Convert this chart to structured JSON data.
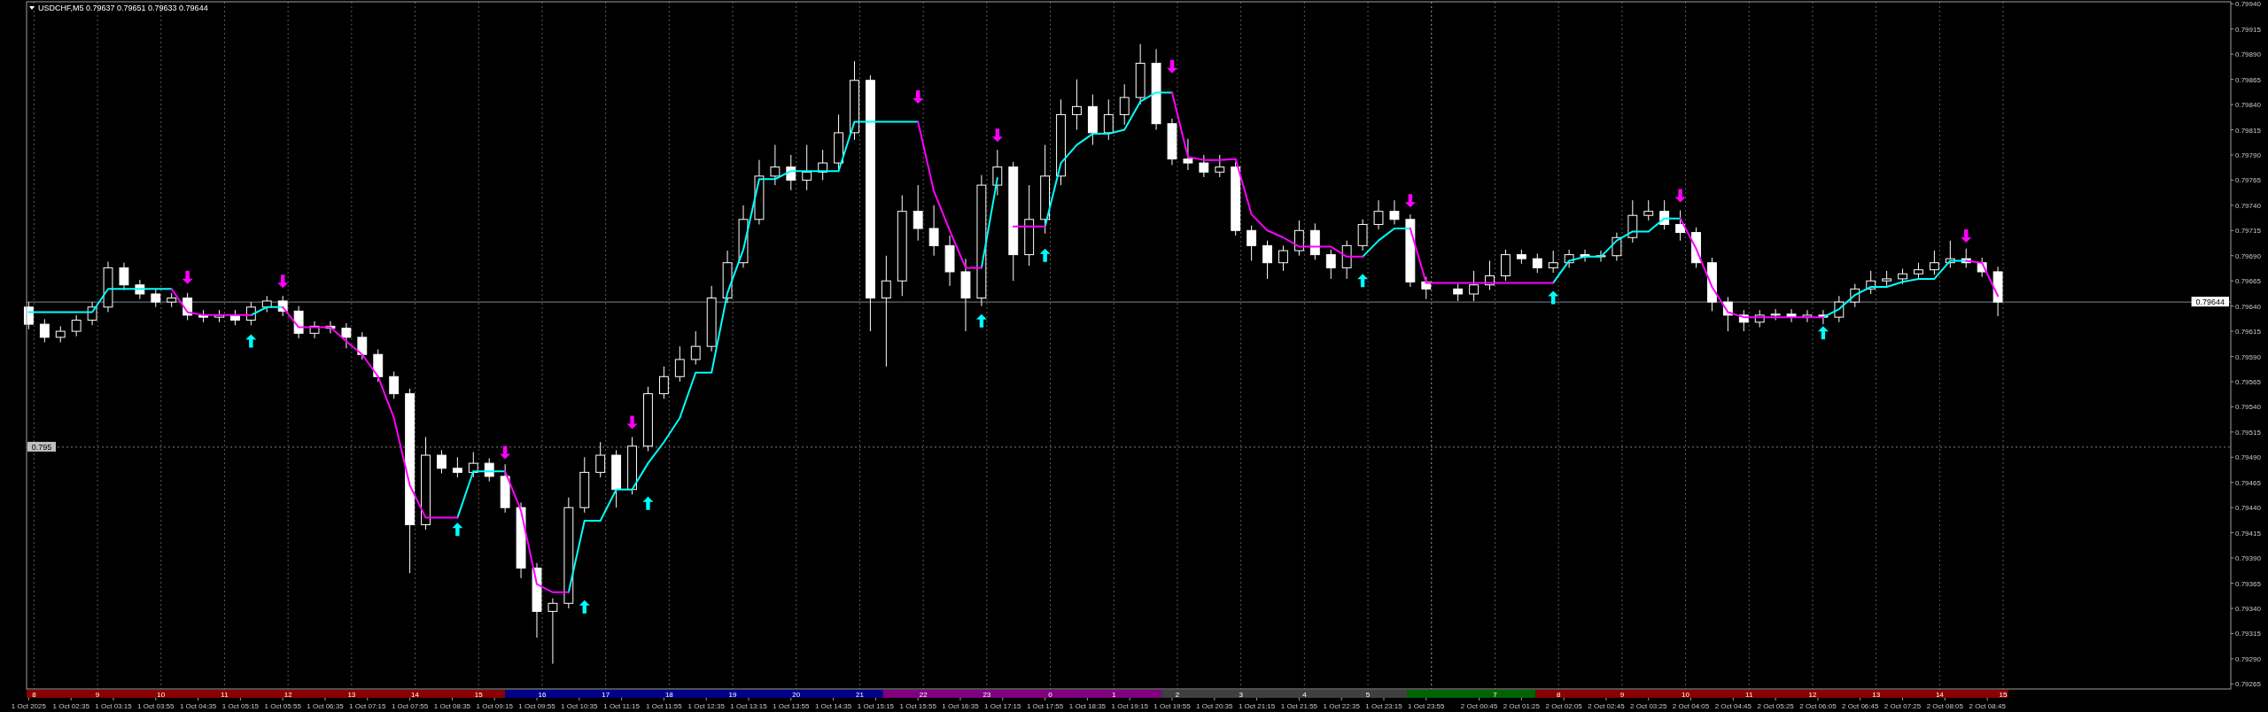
{
  "chart_data": {
    "type": "candlestick",
    "title": "USDCHF,M5 0.79637 0.79651 0.79633 0.79644",
    "x": [
      "2025-10-01T01:55",
      "2025-10-01T02:10",
      "2025-10-01T02:25",
      "2025-10-01T02:40",
      "2025-10-01T02:55",
      "2025-10-01T03:10",
      "2025-10-01T03:25",
      "2025-10-01T03:40",
      "2025-10-01T03:55",
      "2025-10-01T04:10",
      "2025-10-01T04:25",
      "2025-10-01T04:40",
      "2025-10-01T04:55",
      "2025-10-01T05:10",
      "2025-10-01T05:25",
      "2025-10-01T05:40",
      "2025-10-01T05:55",
      "2025-10-01T06:10",
      "2025-10-01T06:25",
      "2025-10-01T06:40",
      "2025-10-01T06:55",
      "2025-10-01T07:10",
      "2025-10-01T07:25",
      "2025-10-01T07:40",
      "2025-10-01T07:55",
      "2025-10-01T08:10",
      "2025-10-01T08:25",
      "2025-10-01T08:40",
      "2025-10-01T08:55",
      "2025-10-01T09:10",
      "2025-10-01T09:25",
      "2025-10-01T09:40",
      "2025-10-01T09:55",
      "2025-10-01T10:10",
      "2025-10-01T10:25",
      "2025-10-01T10:40",
      "2025-10-01T10:55",
      "2025-10-01T11:10",
      "2025-10-01T11:25",
      "2025-10-01T11:40",
      "2025-10-01T11:55",
      "2025-10-01T12:10",
      "2025-10-01T12:25",
      "2025-10-01T12:40",
      "2025-10-01T12:55",
      "2025-10-01T13:10",
      "2025-10-01T13:25",
      "2025-10-01T13:40",
      "2025-10-01T13:55",
      "2025-10-01T14:10",
      "2025-10-01T14:25",
      "2025-10-01T14:40",
      "2025-10-01T14:55",
      "2025-10-01T15:10",
      "2025-10-01T15:25",
      "2025-10-01T15:40",
      "2025-10-01T15:55",
      "2025-10-01T16:10",
      "2025-10-01T16:25",
      "2025-10-01T16:40",
      "2025-10-01T16:55",
      "2025-10-01T17:10",
      "2025-10-01T17:25",
      "2025-10-01T17:40",
      "2025-10-01T17:55",
      "2025-10-01T18:10",
      "2025-10-01T18:25",
      "2025-10-01T18:40",
      "2025-10-01T18:55",
      "2025-10-01T19:10",
      "2025-10-01T19:25",
      "2025-10-01T19:40",
      "2025-10-01T19:55",
      "2025-10-01T20:10",
      "2025-10-01T20:25",
      "2025-10-01T20:40",
      "2025-10-01T20:55",
      "2025-10-01T21:10",
      "2025-10-01T21:25",
      "2025-10-01T21:40",
      "2025-10-01T21:55",
      "2025-10-01T22:10",
      "2025-10-01T22:25",
      "2025-10-01T22:40",
      "2025-10-01T22:55",
      "2025-10-01T23:10",
      "2025-10-01T23:25",
      "2025-10-01T23:40",
      "2025-10-01T23:55",
      "2025-10-02T00:25",
      "2025-10-02T00:40",
      "2025-10-02T00:55",
      "2025-10-02T01:10",
      "2025-10-02T01:25",
      "2025-10-02T01:40",
      "2025-10-02T01:55",
      "2025-10-02T02:10",
      "2025-10-02T02:25",
      "2025-10-02T02:40",
      "2025-10-02T02:55",
      "2025-10-02T03:10",
      "2025-10-02T03:25",
      "2025-10-02T03:40",
      "2025-10-02T03:55",
      "2025-10-02T04:10",
      "2025-10-02T04:25",
      "2025-10-02T04:40",
      "2025-10-02T04:55",
      "2025-10-02T05:10",
      "2025-10-02T05:25",
      "2025-10-02T05:40",
      "2025-10-02T05:55",
      "2025-10-02T06:10",
      "2025-10-02T06:25",
      "2025-10-02T06:40",
      "2025-10-02T06:55",
      "2025-10-02T07:10",
      "2025-10-02T07:25",
      "2025-10-02T07:40",
      "2025-10-02T07:55",
      "2025-10-02T08:10",
      "2025-10-02T08:25",
      "2025-10-02T08:40",
      "2025-10-02T08:55"
    ],
    "ohlc": [
      [
        0.79639,
        0.79644,
        0.79617,
        0.79622
      ],
      [
        0.79622,
        0.79627,
        0.79604,
        0.79609
      ],
      [
        0.79609,
        0.7962,
        0.79604,
        0.79615
      ],
      [
        0.79615,
        0.79631,
        0.7961,
        0.79626
      ],
      [
        0.79626,
        0.79644,
        0.79621,
        0.79639
      ],
      [
        0.79639,
        0.79684,
        0.79634,
        0.79678
      ],
      [
        0.79678,
        0.79683,
        0.79656,
        0.79661
      ],
      [
        0.79661,
        0.79666,
        0.79647,
        0.79652
      ],
      [
        0.79652,
        0.79657,
        0.79639,
        0.79644
      ],
      [
        0.79644,
        0.79653,
        0.79639,
        0.79648
      ],
      [
        0.79648,
        0.79653,
        0.79626,
        0.79631
      ],
      [
        0.79631,
        0.79636,
        0.79624,
        0.79629
      ],
      [
        0.79629,
        0.79636,
        0.79624,
        0.79631
      ],
      [
        0.79631,
        0.79636,
        0.79621,
        0.79626
      ],
      [
        0.79626,
        0.79644,
        0.79621,
        0.79639
      ],
      [
        0.79639,
        0.7965,
        0.79634,
        0.79645
      ],
      [
        0.79645,
        0.7965,
        0.7963,
        0.79635
      ],
      [
        0.79635,
        0.7964,
        0.79608,
        0.79613
      ],
      [
        0.79613,
        0.79625,
        0.79608,
        0.7962
      ],
      [
        0.7962,
        0.79625,
        0.79613,
        0.79618
      ],
      [
        0.79618,
        0.79623,
        0.79598,
        0.79609
      ],
      [
        0.79609,
        0.79614,
        0.79587,
        0.79592
      ],
      [
        0.79592,
        0.79597,
        0.79565,
        0.7957
      ],
      [
        0.7957,
        0.79575,
        0.79548,
        0.79553
      ],
      [
        0.79553,
        0.79558,
        0.79375,
        0.79423
      ],
      [
        0.79423,
        0.7951,
        0.79418,
        0.79492
      ],
      [
        0.79492,
        0.79497,
        0.79474,
        0.79479
      ],
      [
        0.79479,
        0.7949,
        0.7947,
        0.79475
      ],
      [
        0.79475,
        0.79495,
        0.7947,
        0.79484
      ],
      [
        0.79484,
        0.79489,
        0.79466,
        0.79471
      ],
      [
        0.79471,
        0.79483,
        0.79435,
        0.7944
      ],
      [
        0.7944,
        0.79445,
        0.7937,
        0.7938
      ],
      [
        0.7938,
        0.79385,
        0.79311,
        0.79337
      ],
      [
        0.79337,
        0.7935,
        0.79285,
        0.79345
      ],
      [
        0.79345,
        0.7945,
        0.7934,
        0.7944
      ],
      [
        0.7944,
        0.7949,
        0.79435,
        0.79475
      ],
      [
        0.79475,
        0.79505,
        0.7947,
        0.79492
      ],
      [
        0.79492,
        0.79497,
        0.7944,
        0.79458
      ],
      [
        0.79458,
        0.7951,
        0.79453,
        0.79501
      ],
      [
        0.79501,
        0.7956,
        0.79496,
        0.79553
      ],
      [
        0.79553,
        0.7958,
        0.79548,
        0.7957
      ],
      [
        0.7957,
        0.796,
        0.79565,
        0.79587
      ],
      [
        0.79587,
        0.79615,
        0.79582,
        0.796
      ],
      [
        0.796,
        0.7966,
        0.79595,
        0.79648
      ],
      [
        0.79648,
        0.79695,
        0.79643,
        0.79683
      ],
      [
        0.79683,
        0.7974,
        0.79678,
        0.79726
      ],
      [
        0.79726,
        0.79785,
        0.79721,
        0.79769
      ],
      [
        0.79769,
        0.798,
        0.7976,
        0.79778
      ],
      [
        0.79778,
        0.7979,
        0.79755,
        0.79765
      ],
      [
        0.79765,
        0.798,
        0.79755,
        0.79773
      ],
      [
        0.79773,
        0.79795,
        0.79765,
        0.79782
      ],
      [
        0.79782,
        0.7983,
        0.79775,
        0.79812
      ],
      [
        0.79812,
        0.79883,
        0.79805,
        0.79864
      ],
      [
        0.79864,
        0.79869,
        0.79615,
        0.79648
      ],
      [
        0.79648,
        0.7969,
        0.7958,
        0.79665
      ],
      [
        0.79665,
        0.7975,
        0.7965,
        0.79734
      ],
      [
        0.79734,
        0.7976,
        0.79705,
        0.79717
      ],
      [
        0.79717,
        0.7974,
        0.7969,
        0.797
      ],
      [
        0.797,
        0.7971,
        0.7966,
        0.79674
      ],
      [
        0.79674,
        0.79687,
        0.79615,
        0.79648
      ],
      [
        0.79648,
        0.7977,
        0.7964,
        0.7976
      ],
      [
        0.7976,
        0.79795,
        0.7975,
        0.79778
      ],
      [
        0.79778,
        0.79783,
        0.79665,
        0.79691
      ],
      [
        0.79691,
        0.7976,
        0.7968,
        0.79726
      ],
      [
        0.79726,
        0.798,
        0.79712,
        0.79769
      ],
      [
        0.79769,
        0.79845,
        0.7976,
        0.7983
      ],
      [
        0.7983,
        0.79865,
        0.79815,
        0.79838
      ],
      [
        0.79838,
        0.7985,
        0.798,
        0.79812
      ],
      [
        0.79812,
        0.79845,
        0.79805,
        0.7983
      ],
      [
        0.7983,
        0.7986,
        0.7982,
        0.79847
      ],
      [
        0.79847,
        0.799,
        0.7984,
        0.79881
      ],
      [
        0.79881,
        0.79895,
        0.79815,
        0.79821
      ],
      [
        0.79821,
        0.79826,
        0.7978,
        0.79786
      ],
      [
        0.79786,
        0.79806,
        0.79775,
        0.79782
      ],
      [
        0.79782,
        0.7979,
        0.79768,
        0.79773
      ],
      [
        0.79773,
        0.7979,
        0.79768,
        0.79778
      ],
      [
        0.79778,
        0.79783,
        0.7971,
        0.79715
      ],
      [
        0.79715,
        0.7972,
        0.79685,
        0.797
      ],
      [
        0.797,
        0.79705,
        0.79667,
        0.79683
      ],
      [
        0.79683,
        0.797,
        0.79675,
        0.79695
      ],
      [
        0.79695,
        0.79725,
        0.7969,
        0.79715
      ],
      [
        0.79715,
        0.79722,
        0.79686,
        0.79691
      ],
      [
        0.79691,
        0.79696,
        0.79667,
        0.79678
      ],
      [
        0.79678,
        0.79705,
        0.79667,
        0.797
      ],
      [
        0.797,
        0.79726,
        0.79695,
        0.79721
      ],
      [
        0.79721,
        0.79745,
        0.79716,
        0.79734
      ],
      [
        0.79734,
        0.79745,
        0.79721,
        0.79726
      ],
      [
        0.79726,
        0.79731,
        0.79659,
        0.79664
      ],
      [
        0.79664,
        0.79669,
        0.79647,
        0.79657
      ],
      [
        0.79657,
        0.79662,
        0.79645,
        0.79652
      ],
      [
        0.79652,
        0.79675,
        0.79645,
        0.79661
      ],
      [
        0.79661,
        0.79685,
        0.79656,
        0.7967
      ],
      [
        0.7967,
        0.79696,
        0.79665,
        0.79691
      ],
      [
        0.79691,
        0.79696,
        0.79682,
        0.79687
      ],
      [
        0.79687,
        0.79692,
        0.79673,
        0.79678
      ],
      [
        0.79678,
        0.79695,
        0.79673,
        0.79683
      ],
      [
        0.79683,
        0.79696,
        0.79678,
        0.79691
      ],
      [
        0.79691,
        0.79696,
        0.79684,
        0.79689
      ],
      [
        0.79689,
        0.79695,
        0.79684,
        0.7969
      ],
      [
        0.7969,
        0.79713,
        0.79685,
        0.79708
      ],
      [
        0.79708,
        0.79745,
        0.79703,
        0.7973
      ],
      [
        0.7973,
        0.79745,
        0.79725,
        0.79734
      ],
      [
        0.79734,
        0.79745,
        0.79716,
        0.79721
      ],
      [
        0.79721,
        0.79735,
        0.79705,
        0.79713
      ],
      [
        0.79713,
        0.79718,
        0.79678,
        0.79683
      ],
      [
        0.79683,
        0.79688,
        0.79635,
        0.79644
      ],
      [
        0.79644,
        0.79649,
        0.79615,
        0.79631
      ],
      [
        0.79631,
        0.79636,
        0.79615,
        0.79624
      ],
      [
        0.79624,
        0.79636,
        0.79619,
        0.79631
      ],
      [
        0.79631,
        0.79637,
        0.79626,
        0.79632
      ],
      [
        0.79632,
        0.79637,
        0.79624,
        0.79629
      ],
      [
        0.79629,
        0.79636,
        0.79624,
        0.79631
      ],
      [
        0.79631,
        0.79636,
        0.79622,
        0.79629
      ],
      [
        0.79629,
        0.7965,
        0.79624,
        0.79644
      ],
      [
        0.79644,
        0.79662,
        0.79639,
        0.79657
      ],
      [
        0.79657,
        0.79675,
        0.79652,
        0.79665
      ],
      [
        0.79665,
        0.79675,
        0.7966,
        0.79667
      ],
      [
        0.79667,
        0.79677,
        0.79662,
        0.79672
      ],
      [
        0.79672,
        0.79683,
        0.79667,
        0.79676
      ],
      [
        0.79676,
        0.79695,
        0.79671,
        0.79683
      ],
      [
        0.79683,
        0.79705,
        0.79678,
        0.79687
      ],
      [
        0.79687,
        0.79697,
        0.79678,
        0.79683
      ],
      [
        0.79683,
        0.79688,
        0.79669,
        0.79674
      ],
      [
        0.79674,
        0.79679,
        0.7963,
        0.79644
      ]
    ],
    "series": [
      {
        "type": "line",
        "color": "#00ffff",
        "values": [
          0.79634,
          0.79634,
          0.79634,
          0.79634,
          0.79634,
          0.79657,
          0.79657,
          0.79657,
          0.79657,
          0.79657,
          null,
          null,
          null,
          null,
          0.79631,
          0.79639,
          0.79639,
          null,
          null,
          null,
          null,
          null,
          null,
          null,
          null,
          null,
          null,
          0.7943,
          0.79476,
          0.79476,
          0.79476,
          null,
          null,
          null,
          0.79356,
          0.79427,
          0.79427,
          0.79458,
          0.79458,
          0.79484,
          0.79505,
          0.79529,
          0.79574,
          0.79574,
          0.79653,
          0.79696,
          0.79766,
          0.79766,
          0.79774,
          0.79774,
          0.79774,
          0.79774,
          0.79823,
          0.79823,
          0.79823,
          0.79823,
          0.79823,
          null,
          null,
          null,
          0.79678,
          0.79767,
          null,
          null,
          0.79719,
          0.79782,
          0.798,
          0.79811,
          0.79811,
          0.79815,
          0.79843,
          0.79852,
          0.79852,
          null,
          null,
          null,
          null,
          null,
          null,
          null,
          null,
          null,
          null,
          null,
          0.79689,
          0.79705,
          0.79717,
          0.79717,
          null,
          null,
          null,
          null,
          null,
          null,
          null,
          0.79663,
          0.79685,
          0.79689,
          0.79689,
          0.79705,
          0.79714,
          0.79714,
          0.79727,
          0.79727,
          null,
          null,
          null,
          null,
          null,
          null,
          null,
          null,
          0.79629,
          0.79637,
          0.79651,
          0.79659,
          0.79659,
          0.79664,
          0.79667,
          0.79667,
          0.79685,
          0.79685,
          null,
          null
        ]
      },
      {
        "type": "line",
        "color": "#ff00ff",
        "values": [
          null,
          null,
          null,
          null,
          null,
          null,
          null,
          null,
          null,
          0.79657,
          0.79634,
          0.79631,
          0.79631,
          0.79631,
          0.79631,
          null,
          0.79639,
          0.79619,
          0.79619,
          0.79619,
          0.79605,
          0.79592,
          0.7957,
          0.79529,
          0.79462,
          0.7943,
          0.7943,
          0.7943,
          null,
          null,
          0.79476,
          0.79437,
          0.79364,
          0.79356,
          0.79356,
          null,
          null,
          null,
          null,
          null,
          null,
          null,
          null,
          null,
          null,
          null,
          null,
          null,
          null,
          null,
          null,
          null,
          null,
          null,
          null,
          null,
          0.79823,
          0.79754,
          0.79715,
          0.79678,
          0.79678,
          null,
          0.79719,
          0.79719,
          0.79719,
          null,
          null,
          null,
          null,
          null,
          null,
          null,
          0.79852,
          0.79788,
          0.79785,
          0.79785,
          0.79786,
          0.79731,
          0.79715,
          0.79708,
          0.79699,
          0.79699,
          0.79699,
          0.79689,
          0.79689,
          null,
          null,
          0.79717,
          0.79663,
          0.79663,
          0.79663,
          0.79663,
          0.79663,
          0.79663,
          0.79663,
          0.79663,
          null,
          null,
          null,
          null,
          null,
          null,
          null,
          0.79727,
          0.79697,
          0.79659,
          0.79634,
          0.79629,
          0.79629,
          0.79629,
          0.79629,
          0.79629,
          0.79629,
          null,
          null,
          null,
          null,
          null,
          null,
          null,
          null,
          0.79685,
          0.79683,
          0.7965
        ]
      },
      {
        "type": "scatter",
        "color": "#00ffff",
        "marker": "triangle",
        "x": [
          "2025-10-01T05:25",
          "2025-10-01T08:40",
          "2025-10-01T10:40",
          "2025-10-01T11:40",
          "2025-10-01T16:55",
          "2025-10-01T17:55",
          "2025-10-01T22:55",
          "2025-10-02T01:55",
          "2025-10-02T06:10"
        ],
        "values": [
          0.79605,
          0.79418,
          0.79341,
          0.79444,
          0.79625,
          0.7969,
          0.79665,
          0.79648,
          0.79613
        ]
      },
      {
        "type": "scatter",
        "color": "#ff00ff",
        "marker": "triangle",
        "x": [
          "2025-10-01T04:25",
          "2025-10-01T05:55",
          "2025-10-01T09:25",
          "2025-10-01T11:25",
          "2025-10-01T15:55",
          "2025-10-01T17:10",
          "2025-10-01T19:55",
          "2025-10-01T23:40",
          "2025-10-02T03:55",
          "2025-10-02T08:25"
        ],
        "values": [
          0.79669,
          0.79665,
          0.79495,
          0.79525,
          0.79848,
          0.7981,
          0.79878,
          0.79745,
          0.7975,
          0.7971
        ]
      }
    ],
    "xlim": [
      "2025-10-01T01:53",
      "2025-10-02T12:35"
    ],
    "ylim": [
      0.7926,
      0.79942
    ],
    "xticks": [
      {
        "value": "2025-10-01T01:55",
        "label": "1 Oct 2025"
      },
      {
        "value": "2025-10-01T02:35",
        "label": "1 Oct 02:35"
      },
      {
        "value": "2025-10-01T03:15",
        "label": "1 Oct 03:15"
      },
      {
        "value": "2025-10-01T03:55",
        "label": "1 Oct 03:55"
      },
      {
        "value": "2025-10-01T04:35",
        "label": "1 Oct 04:35"
      },
      {
        "value": "2025-10-01T05:15",
        "label": "1 Oct 05:15"
      },
      {
        "value": "2025-10-01T05:55",
        "label": "1 Oct 05:55"
      },
      {
        "value": "2025-10-01T06:35",
        "label": "1 Oct 06:35"
      },
      {
        "value": "2025-10-01T07:15",
        "label": "1 Oct 07:15"
      },
      {
        "value": "2025-10-01T07:55",
        "label": "1 Oct 07:55"
      },
      {
        "value": "2025-10-01T08:35",
        "label": "1 Oct 08:35"
      },
      {
        "value": "2025-10-01T09:15",
        "label": "1 Oct 09:15"
      },
      {
        "value": "2025-10-01T09:55",
        "label": "1 Oct 09:55"
      },
      {
        "value": "2025-10-01T10:35",
        "label": "1 Oct 10:35"
      },
      {
        "value": "2025-10-01T11:15",
        "label": "1 Oct 11:15"
      },
      {
        "value": "2025-10-01T11:55",
        "label": "1 Oct 11:55"
      },
      {
        "value": "2025-10-01T12:35",
        "label": "1 Oct 12:35"
      },
      {
        "value": "2025-10-01T13:15",
        "label": "1 Oct 13:15"
      },
      {
        "value": "2025-10-01T13:55",
        "label": "1 Oct 13:55"
      },
      {
        "value": "2025-10-01T14:35",
        "label": "1 Oct 14:35"
      },
      {
        "value": "2025-10-01T15:15",
        "label": "1 Oct 15:15"
      },
      {
        "value": "2025-10-01T15:55",
        "label": "1 Oct 15:55"
      },
      {
        "value": "2025-10-01T16:35",
        "label": "1 Oct 16:35"
      },
      {
        "value": "2025-10-01T17:15",
        "label": "1 Oct 17:15"
      },
      {
        "value": "2025-10-01T17:55",
        "label": "1 Oct 17:55"
      },
      {
        "value": "2025-10-01T18:35",
        "label": "1 Oct 18:35"
      },
      {
        "value": "2025-10-01T19:15",
        "label": "1 Oct 19:15"
      },
      {
        "value": "2025-10-01T19:55",
        "label": "1 Oct 19:55"
      },
      {
        "value": "2025-10-01T20:35",
        "label": "1 Oct 20:35"
      },
      {
        "value": "2025-10-01T21:15",
        "label": "1 Oct 21:15"
      },
      {
        "value": "2025-10-01T21:55",
        "label": "1 Oct 21:55"
      },
      {
        "value": "2025-10-01T22:35",
        "label": "1 Oct 22:35"
      },
      {
        "value": "2025-10-01T23:15",
        "label": "1 Oct 23:15"
      },
      {
        "value": "2025-10-01T23:55",
        "label": "1 Oct 23:55"
      },
      {
        "value": "2025-10-02T00:45",
        "label": "2 Oct 00:45"
      },
      {
        "value": "2025-10-02T01:25",
        "label": "2 Oct 01:25"
      },
      {
        "value": "2025-10-02T02:05",
        "label": "2 Oct 02:05"
      },
      {
        "value": "2025-10-02T02:45",
        "label": "2 Oct 02:45"
      },
      {
        "value": "2025-10-02T03:25",
        "label": "2 Oct 03:25"
      },
      {
        "value": "2025-10-02T04:05",
        "label": "2 Oct 04:05"
      },
      {
        "value": "2025-10-02T04:45",
        "label": "2 Oct 04:45"
      },
      {
        "value": "2025-10-02T05:25",
        "label": "2 Oct 05:25"
      },
      {
        "value": "2025-10-02T06:05",
        "label": "2 Oct 06:05"
      },
      {
        "value": "2025-10-02T06:45",
        "label": "2 Oct 06:45"
      },
      {
        "value": "2025-10-02T07:25",
        "label": "2 Oct 07:25"
      },
      {
        "value": "2025-10-02T08:05",
        "label": "2 Oct 08:05"
      },
      {
        "value": "2025-10-02T08:45",
        "label": "2 Oct 08:45"
      }
    ],
    "yticks": [
      0.79265,
      {
        "value": 0.7929,
        "label": "0.79290"
      },
      0.79315,
      {
        "value": 0.7934,
        "label": "0.79340"
      },
      0.79365,
      {
        "value": 0.7939,
        "label": "0.79390"
      },
      0.79415,
      {
        "value": 0.7944,
        "label": "0.79440"
      },
      0.79465,
      {
        "value": 0.7949,
        "label": "0.79490"
      },
      0.79515,
      {
        "value": 0.7954,
        "label": "0.79540"
      },
      0.79565,
      {
        "value": 0.7959,
        "label": "0.79590"
      },
      0.79615,
      {
        "value": 0.7964,
        "label": "0.79640"
      },
      0.79665,
      {
        "value": 0.7969,
        "label": "0.79690"
      },
      0.79715,
      {
        "value": 0.7974,
        "label": "0.79740"
      },
      0.79765,
      {
        "value": 0.7979,
        "label": "0.79790"
      },
      0.79815,
      {
        "value": 0.7984,
        "label": "0.79840"
      },
      0.79865,
      {
        "value": 0.7989,
        "label": "0.79890"
      },
      0.79915,
      {
        "value": 0.7994,
        "label": "0.79940"
      }
    ],
    "x2lim": [
      "2025-10-01T01:53",
      "2025-10-02T12:35"
    ],
    "x2ticks": [
      {
        "value": "2025-10-01T02:00",
        "label": "8"
      },
      {
        "value": "2025-10-01T03:00",
        "label": "9"
      },
      {
        "value": "2025-10-01T04:00",
        "label": "10"
      },
      {
        "value": "2025-10-01T05:00",
        "label": "11"
      },
      {
        "value": "2025-10-01T06:00",
        "label": "12"
      },
      {
        "value": "2025-10-01T07:00",
        "label": "13"
      },
      {
        "value": "2025-10-01T08:00",
        "label": "14"
      },
      {
        "value": "2025-10-01T09:00",
        "label": "15"
      },
      {
        "value": "2025-10-01T10:00",
        "label": "16"
      },
      {
        "value": "2025-10-01T11:00",
        "label": "17"
      },
      {
        "value": "2025-10-01T12:00",
        "label": "18"
      },
      {
        "value": "2025-10-01T13:00",
        "label": "19"
      },
      {
        "value": "2025-10-01T14:00",
        "label": "20"
      },
      {
        "value": "2025-10-01T15:00",
        "label": "21"
      },
      {
        "value": "2025-10-01T16:00",
        "label": "22"
      },
      {
        "value": "2025-10-01T17:00",
        "label": "23"
      },
      {
        "value": "2025-10-01T18:00",
        "label": "0"
      },
      {
        "value": "2025-10-01T19:00",
        "label": "1"
      },
      {
        "value": "2025-10-01T20:00",
        "label": "2"
      },
      {
        "value": "2025-10-01T21:00",
        "label": "3"
      },
      {
        "value": "2025-10-01T22:00",
        "label": "4"
      },
      {
        "value": "2025-10-01T23:00",
        "label": "5"
      },
      {
        "value": "2025-10-02T01:00",
        "label": "7"
      },
      {
        "value": "2025-10-02T02:00",
        "label": "8"
      },
      {
        "value": "2025-10-02T03:00",
        "label": "9"
      },
      {
        "value": "2025-10-02T04:00",
        "label": "10"
      },
      {
        "value": "2025-10-02T05:00",
        "label": "11"
      },
      {
        "value": "2025-10-02T06:00",
        "label": "12"
      },
      {
        "value": "2025-10-02T07:00",
        "label": "13"
      },
      {
        "value": "2025-10-02T08:00",
        "label": "14"
      },
      {
        "value": "2025-10-02T09:00",
        "label": "15"
      }
    ],
    "ref_lines": [
      {
        "axis": "y",
        "value": 0.79644,
        "label": "0.79644",
        "color": "#778899"
      },
      {
        "axis": "y",
        "value": 0.795,
        "label": "0.795",
        "color": "#808080",
        "line_style": "dotted"
      },
      {
        "axis": "x",
        "value": "2025-10-02T00:00",
        "color": "#a0a0a0",
        "line_style": "dotted"
      }
    ],
    "grid": "x"
  }
}
